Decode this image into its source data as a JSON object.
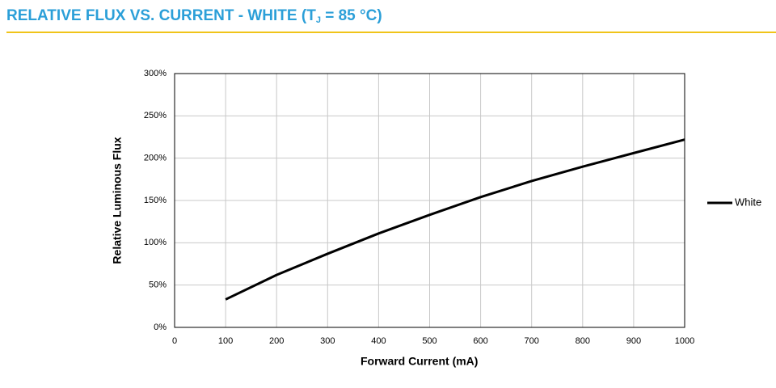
{
  "chart_data": {
    "type": "line",
    "title": [
      "RELATIVE FLUX VS. CURRENT - WHITE (T",
      "J",
      " = 85 °C)"
    ],
    "x_label": "Forward Current (mA)",
    "y_label": "Relative Luminous Flux",
    "x": [
      100,
      200,
      300,
      400,
      500,
      600,
      700,
      800,
      900,
      1000
    ],
    "series": [
      {
        "name": "White",
        "color": "#000000",
        "values": [
          33,
          62,
          87,
          111,
          133,
          154,
          173,
          190,
          206,
          222
        ]
      }
    ],
    "xlim": [
      0,
      1000
    ],
    "xticks": [
      0,
      100,
      200,
      300,
      400,
      500,
      600,
      700,
      800,
      900,
      1000
    ],
    "ylim": [
      0,
      300
    ],
    "yticks": [
      {
        "value": 0,
        "label": "0%"
      },
      {
        "value": 50,
        "label": "50%"
      },
      {
        "value": 100,
        "label": "100%"
      },
      {
        "value": 150,
        "label": "150%"
      },
      {
        "value": 200,
        "label": "200%"
      },
      {
        "value": 250,
        "label": "250%"
      },
      {
        "value": 300,
        "label": "300%"
      }
    ],
    "grid": true,
    "legend": "right"
  }
}
